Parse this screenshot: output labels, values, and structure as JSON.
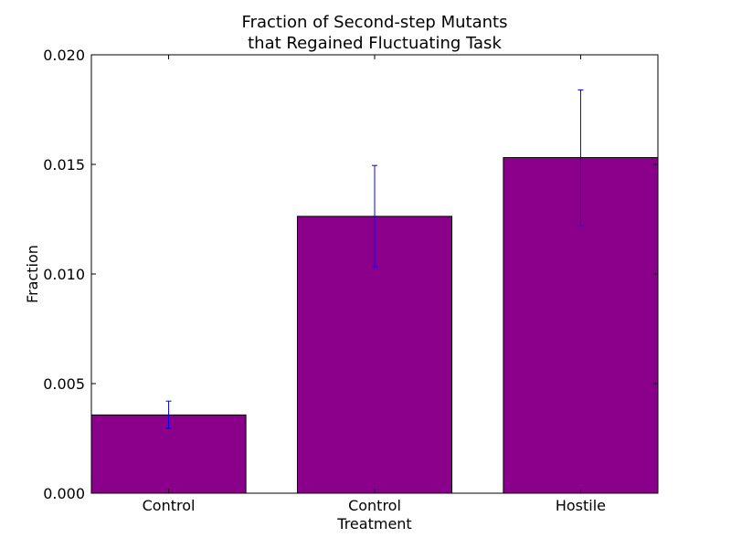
{
  "chart_data": {
    "type": "bar",
    "title_lines": [
      "Fraction of Second-step Mutants",
      "that Regained Fluctuating Task"
    ],
    "xlabel": "Treatment",
    "ylabel": "Fraction",
    "categories": [
      "Control",
      "Control",
      "Hostile"
    ],
    "values": [
      0.00357,
      0.01263,
      0.01531
    ],
    "error_low": [
      0.00296,
      0.01033,
      0.0122
    ],
    "error_high": [
      0.0042,
      0.01495,
      0.0184
    ],
    "ylim": [
      0,
      0.02
    ],
    "yticks": [
      "0.000",
      "0.005",
      "0.010",
      "0.015",
      "0.020"
    ],
    "grid": false,
    "colors": {
      "bar_fill": "#8b008b",
      "bar_edge": "#000000",
      "error_bar": "#0000ff",
      "axis": "#000000",
      "background": "#ffffff"
    }
  }
}
